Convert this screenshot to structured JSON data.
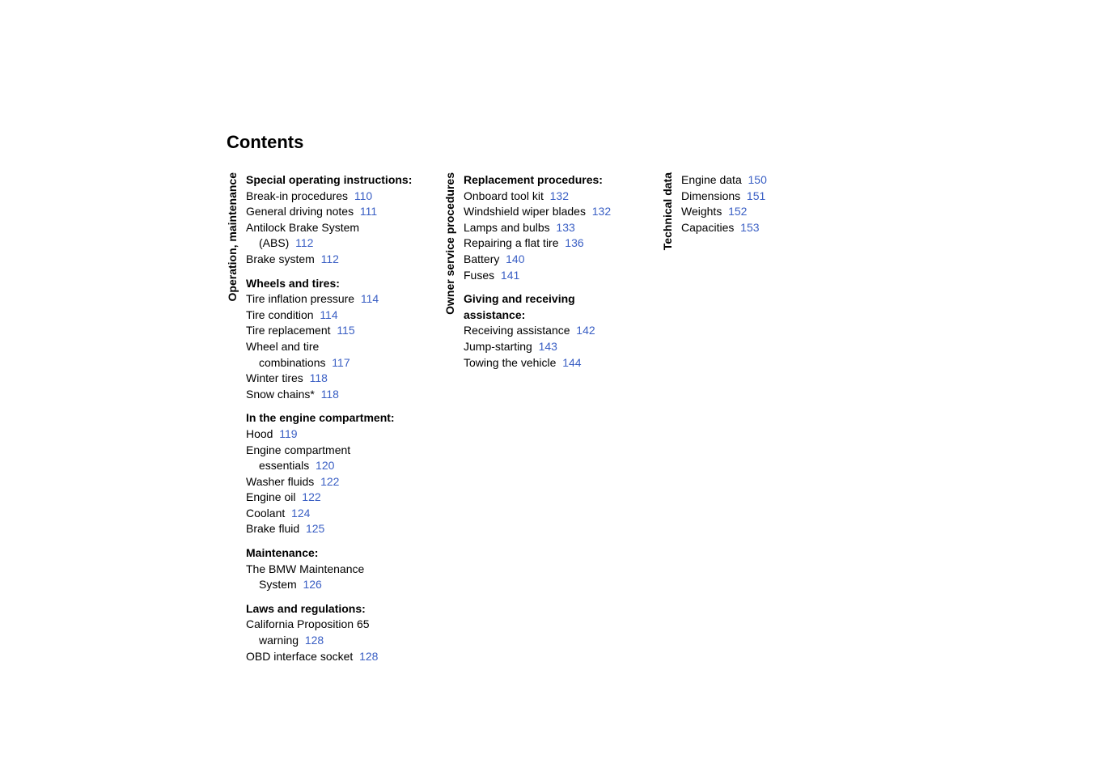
{
  "title": "Contents",
  "link_color": "#3a5fc4",
  "text_color": "#000000",
  "background_color": "#ffffff",
  "title_fontsize": 22,
  "body_fontsize": 14,
  "columns": [
    {
      "vertical_label": "Operation, maintenance",
      "sections": [
        {
          "heading": "Special operating instructions:",
          "entries": [
            {
              "text": "Break-in procedures",
              "page": "110"
            },
            {
              "text": "General driving notes",
              "page": "111"
            },
            {
              "text": "Antilock Brake System",
              "cont": "(ABS)",
              "page": "112"
            },
            {
              "text": "Brake system",
              "page": "112"
            }
          ]
        },
        {
          "heading": "Wheels and tires:",
          "entries": [
            {
              "text": "Tire inflation pressure",
              "page": "114"
            },
            {
              "text": "Tire condition",
              "page": "114"
            },
            {
              "text": "Tire replacement",
              "page": "115"
            },
            {
              "text": "Wheel and tire",
              "cont": "combinations",
              "page": "117"
            },
            {
              "text": "Winter tires",
              "page": "118"
            },
            {
              "text": "Snow chains*",
              "page": "118"
            }
          ]
        },
        {
          "heading": "In the engine compartment:",
          "entries": [
            {
              "text": "Hood",
              "page": "119"
            },
            {
              "text": "Engine compartment",
              "cont": "essentials",
              "page": "120"
            },
            {
              "text": "Washer fluids",
              "page": "122"
            },
            {
              "text": "Engine oil",
              "page": "122"
            },
            {
              "text": "Coolant",
              "page": "124"
            },
            {
              "text": "Brake fluid",
              "page": "125"
            }
          ]
        },
        {
          "heading": "Maintenance:",
          "entries": [
            {
              "text": "The BMW Maintenance",
              "cont": "System",
              "page": "126"
            }
          ]
        },
        {
          "heading": "Laws and regulations:",
          "entries": [
            {
              "text": "California Proposition 65",
              "cont": "warning",
              "page": "128"
            },
            {
              "text": "OBD interface socket",
              "page": "128"
            }
          ]
        }
      ]
    },
    {
      "vertical_label": "Owner service procedures",
      "sections": [
        {
          "heading": "Replacement procedures:",
          "entries": [
            {
              "text": "Onboard tool kit",
              "page": "132"
            },
            {
              "text": "Windshield wiper blades",
              "page": "132"
            },
            {
              "text": "Lamps and bulbs",
              "page": "133"
            },
            {
              "text": "Repairing a flat tire",
              "page": "136"
            },
            {
              "text": "Battery",
              "page": "140"
            },
            {
              "text": "Fuses",
              "page": "141"
            }
          ]
        },
        {
          "heading": "Giving and receiving assistance:",
          "heading_lines": [
            "Giving and receiving",
            "assistance:"
          ],
          "entries": [
            {
              "text": "Receiving assistance",
              "page": "142"
            },
            {
              "text": "Jump-starting",
              "page": "143"
            },
            {
              "text": "Towing the vehicle",
              "page": "144"
            }
          ]
        }
      ]
    },
    {
      "vertical_label": "Technical data",
      "sections": [
        {
          "heading": null,
          "entries": [
            {
              "text": "Engine data",
              "page": "150"
            },
            {
              "text": "Dimensions",
              "page": "151"
            },
            {
              "text": "Weights",
              "page": "152"
            },
            {
              "text": "Capacities",
              "page": "153"
            }
          ]
        }
      ]
    }
  ]
}
